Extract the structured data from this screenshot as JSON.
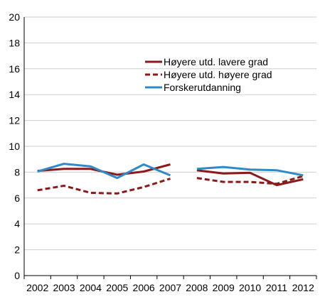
{
  "chart_data": {
    "type": "line",
    "title": "",
    "xlabel": "",
    "ylabel": "",
    "ylim": [
      0,
      20
    ],
    "yticks": [
      0,
      2,
      4,
      6,
      8,
      10,
      12,
      14,
      16,
      18,
      20
    ],
    "x": [
      "2002",
      "2003",
      "2004",
      "2005",
      "2006",
      "2007",
      "2008",
      "2009",
      "2010",
      "2011",
      "2012"
    ],
    "grid": true,
    "legend": "top-right",
    "series": [
      {
        "name": "Høyere utd. lavere grad",
        "color": "#8b1a1a",
        "dash": "solid",
        "values": [
          8.1,
          8.25,
          8.25,
          7.8,
          8.05,
          8.6,
          8.15,
          7.9,
          7.95,
          7.0,
          7.45
        ]
      },
      {
        "name": "Høyere utd. høyere grad",
        "color": "#8b1a1a",
        "dash": "dashed",
        "values": [
          6.6,
          6.95,
          6.4,
          6.35,
          6.85,
          7.5,
          7.55,
          7.25,
          7.25,
          7.1,
          7.7
        ]
      },
      {
        "name": "Forskerutdanning",
        "color": "#2e8bc8",
        "dash": "solid",
        "values": [
          8.05,
          8.65,
          8.45,
          7.55,
          8.6,
          7.75,
          8.25,
          8.4,
          8.2,
          8.15,
          7.75
        ]
      }
    ]
  }
}
